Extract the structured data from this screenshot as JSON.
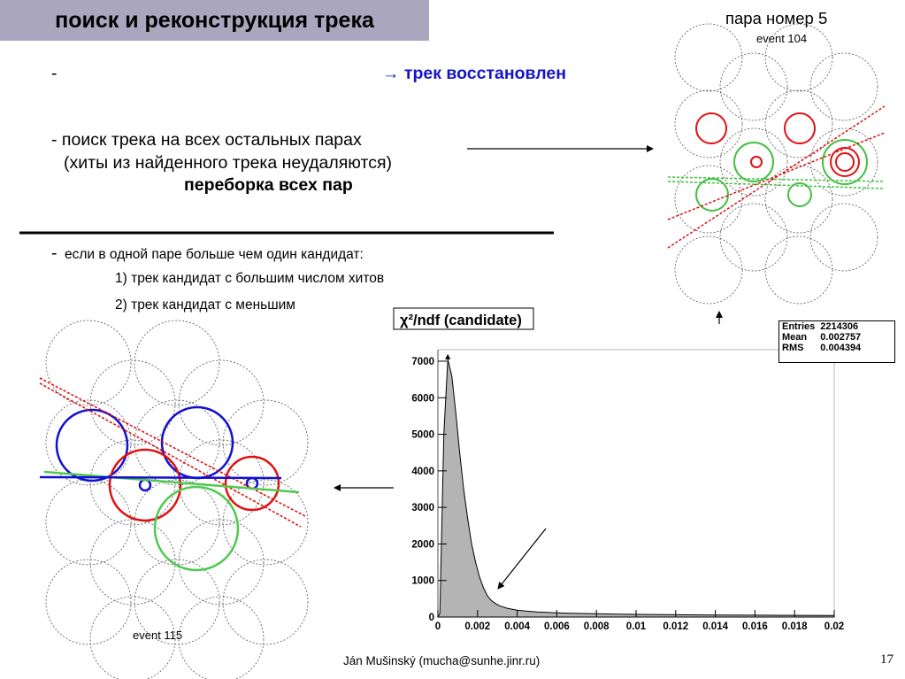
{
  "title": "поиск и реконструкция трека",
  "line1_dash": "-",
  "line1_result": "→ трек восстановлен",
  "line2": "- поиск трека на всех остальных парах",
  "line3": "(хиты из найденного трека неудаляются)",
  "line4": "переборка всех пар",
  "line5_dash": "-",
  "line5": "если в одной паре больше чем один кандидат:",
  "line6": "1) трек кандидат с большим числом хитов",
  "line7": "2) трек кандидат с меньшим",
  "pair_label": "пара номер 5",
  "event_top": "event 104",
  "event_bottom": "event 115",
  "footer": "Ján Mušinský (mucha@sunhe.jinr.ru)",
  "page_number": "17",
  "colors": {
    "title_bg": "#a9a6bd",
    "result_text": "#1515c8",
    "hit_red": "#e01010",
    "hit_green": "#40c040",
    "hit_blue": "#1010d0"
  },
  "chart_data": {
    "type": "area",
    "title": "χ²/ndf (candidate)",
    "xlim": [
      0,
      0.02
    ],
    "ylim": [
      0,
      7000
    ],
    "x_ticks": [
      "0",
      "0.002",
      "0.004",
      "0.006",
      "0.008",
      "0.01",
      "0.012",
      "0.014",
      "0.016",
      "0.018",
      "0.02"
    ],
    "y_ticks": [
      "0",
      "1000",
      "2000",
      "3000",
      "4000",
      "5000",
      "6000",
      "7000"
    ],
    "stats": [
      {
        "label": "Entries",
        "value": "2214306"
      },
      {
        "label": "Mean",
        "value": "0.002757"
      },
      {
        "label": "RMS",
        "value": "0.004394"
      }
    ],
    "x": [
      0.0001,
      0.0003,
      0.0005,
      0.0007,
      0.0009,
      0.0011,
      0.0013,
      0.0015,
      0.0017,
      0.0019,
      0.0021,
      0.0023,
      0.0025,
      0.0027,
      0.0029,
      0.0031,
      0.0035,
      0.004,
      0.0045,
      0.005,
      0.006,
      0.007,
      0.008,
      0.009,
      0.01,
      0.012,
      0.014,
      0.016,
      0.018,
      0.02
    ],
    "values": [
      100,
      5000,
      7050,
      6600,
      5600,
      4500,
      3500,
      2700,
      2000,
      1500,
      1100,
      800,
      580,
      450,
      370,
      310,
      240,
      190,
      160,
      140,
      115,
      100,
      90,
      80,
      72,
      62,
      55,
      50,
      46,
      42
    ]
  }
}
